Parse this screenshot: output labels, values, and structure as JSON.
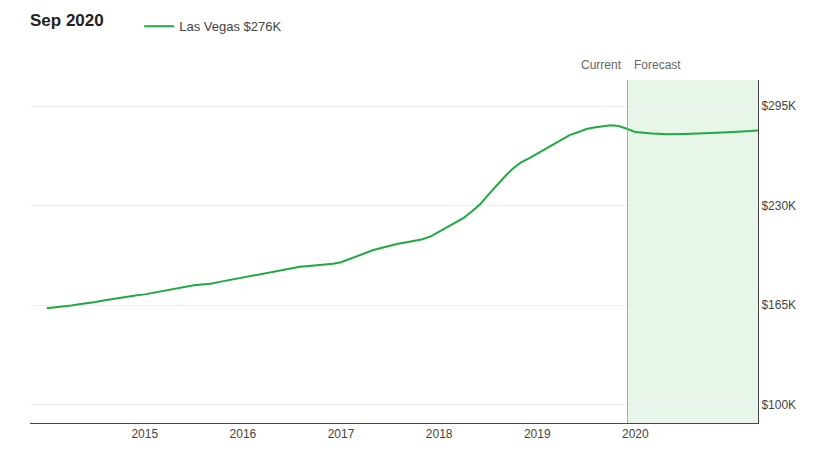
{
  "chart_data": {
    "type": "line",
    "title": "Sep 2020",
    "series": [
      {
        "name": "Las Vegas $276K",
        "color": "#1faa3f",
        "x": [
          2014.0,
          2014.08,
          2014.17,
          2014.25,
          2014.33,
          2014.42,
          2014.5,
          2014.58,
          2014.67,
          2014.75,
          2014.83,
          2014.92,
          2015.0,
          2015.08,
          2015.17,
          2015.25,
          2015.33,
          2015.42,
          2015.5,
          2015.58,
          2015.67,
          2015.75,
          2015.83,
          2015.92,
          2016.0,
          2016.08,
          2016.17,
          2016.25,
          2016.33,
          2016.42,
          2016.5,
          2016.58,
          2016.67,
          2016.75,
          2016.83,
          2016.92,
          2017.0,
          2017.08,
          2017.17,
          2017.25,
          2017.33,
          2017.42,
          2017.5,
          2017.58,
          2017.67,
          2017.75,
          2017.83,
          2017.92,
          2018.0,
          2018.08,
          2018.17,
          2018.25,
          2018.33,
          2018.42,
          2018.5,
          2018.58,
          2018.67,
          2018.75,
          2018.83,
          2018.92,
          2019.0,
          2019.08,
          2019.17,
          2019.25,
          2019.33,
          2019.42,
          2019.5,
          2019.58,
          2019.67,
          2019.75,
          2019.83,
          2019.92
        ],
        "values": [
          163000,
          163500,
          164000,
          164800,
          165500,
          166200,
          167000,
          168000,
          169000,
          170000,
          171000,
          171500,
          172000,
          173000,
          174000,
          175000,
          176000,
          177000,
          178000,
          178500,
          179000,
          180000,
          181000,
          182000,
          183000,
          184000,
          185000,
          186000,
          187000,
          188000,
          189000,
          190000,
          190500,
          191000,
          191500,
          192000,
          193000,
          195000,
          197000,
          199000,
          201000,
          202500,
          204000,
          205000,
          206000,
          207000,
          208000,
          210000,
          213000,
          216000,
          219000,
          222000,
          226000,
          231000,
          237000,
          243000,
          249000,
          254000,
          258000,
          261000,
          264000,
          267000,
          270000,
          273000,
          276000,
          278000,
          280000,
          281000,
          282000,
          282500,
          282000,
          280000
        ]
      },
      {
        "color": "#1faa3f",
        "x": [
          2019.92,
          2020.0,
          2020.17,
          2020.33,
          2020.5,
          2020.67,
          2020.83,
          2021.0,
          2021.17,
          2021.25
        ],
        "values": [
          280000,
          278000,
          277000,
          276500,
          276800,
          277000,
          277500,
          278000,
          278500,
          279000
        ]
      }
    ],
    "xlim": [
      2013.83,
      2021.25
    ],
    "xticks": [
      2015,
      2016,
      2017,
      2018,
      2019,
      2020
    ],
    "ylim": [
      88000,
      312000
    ],
    "yticks": [
      {
        "value": 100000,
        "label": "$100K"
      },
      {
        "value": 165000,
        "label": "$165K"
      },
      {
        "value": 230000,
        "label": "$230K"
      },
      {
        "value": 295000,
        "label": "$295K"
      }
    ],
    "grid": "y",
    "legend": "top left",
    "annotations": [
      {
        "text": "Current",
        "x": 2019.92
      },
      {
        "text": "Forecast",
        "x": 2019.92
      }
    ],
    "forecast_region": {
      "x": [
        2019.92,
        2021.25
      ],
      "color": "#e8f5e9"
    },
    "current_line": {
      "x": 2019.92,
      "color": "#aaaaaa"
    }
  }
}
